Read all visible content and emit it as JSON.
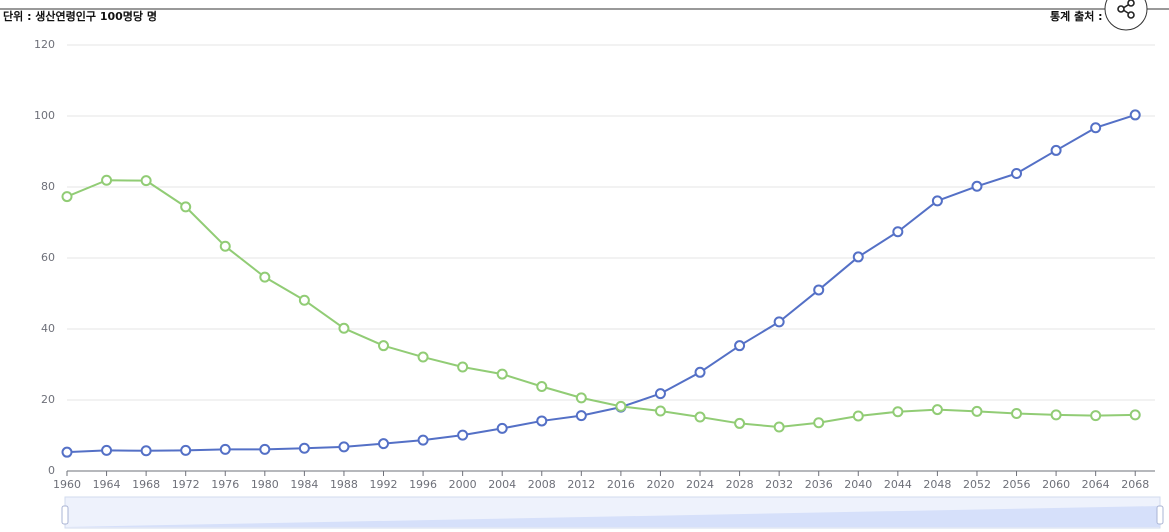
{
  "unit_label": "단위 : 생산연령인구 100명당 명",
  "source_label": "통계 출처 :",
  "chart_data": {
    "type": "line",
    "x": [
      1960,
      1964,
      1968,
      1972,
      1976,
      1980,
      1984,
      1988,
      1992,
      1996,
      2000,
      2004,
      2008,
      2012,
      2016,
      2020,
      2024,
      2028,
      2032,
      2036,
      2040,
      2044,
      2048,
      2052,
      2056,
      2060,
      2064,
      2068
    ],
    "series": [
      {
        "color": "#5470c6",
        "values": [
          5.3,
          5.8,
          5.7,
          5.8,
          6.1,
          6.1,
          6.4,
          6.8,
          7.7,
          8.7,
          10.1,
          12.0,
          14.1,
          15.6,
          18.0,
          21.8,
          27.8,
          35.3,
          42.0,
          51.0,
          60.3,
          67.4,
          76.1,
          80.2,
          83.8,
          90.3,
          96.7,
          100.3
        ]
      },
      {
        "color": "#91cc75",
        "values": [
          77.3,
          81.9,
          81.8,
          74.4,
          63.3,
          54.6,
          48.1,
          40.2,
          35.3,
          32.1,
          29.3,
          27.3,
          23.8,
          20.6,
          18.2,
          16.9,
          15.2,
          13.4,
          12.4,
          13.6,
          15.5,
          16.7,
          17.3,
          16.8,
          16.2,
          15.8,
          15.6,
          15.8
        ]
      }
    ],
    "xlim": [
      1960,
      2070
    ],
    "xticks": [
      1960,
      1964,
      1968,
      1972,
      1976,
      1980,
      1984,
      1988,
      1992,
      1996,
      2000,
      2004,
      2008,
      2012,
      2016,
      2020,
      2024,
      2028,
      2032,
      2036,
      2040,
      2044,
      2048,
      2052,
      2056,
      2060,
      2064,
      2068
    ],
    "ylim": [
      0,
      120
    ],
    "yticks": [
      0,
      20,
      40,
      60,
      80,
      100,
      120
    ],
    "grid": true
  }
}
